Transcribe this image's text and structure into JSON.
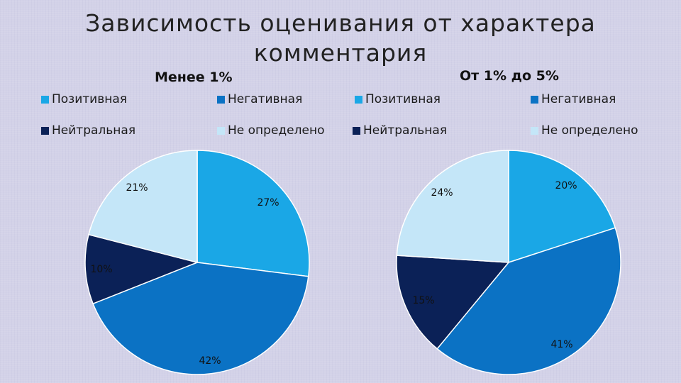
{
  "title": "Зависимость оценивания от характера комментария",
  "colors": {
    "positive": "#1aa7e6",
    "negative": "#0b72c4",
    "neutral": "#0b2157",
    "undetermined": "#c4e6f8"
  },
  "chart_data": [
    {
      "type": "pie",
      "title": "Менее 1%",
      "legend_position": "top",
      "categories": [
        "Позитивная",
        "Негативная",
        "Нейтральная",
        "Не определено"
      ],
      "values": [
        27,
        42,
        10,
        21
      ],
      "labels": [
        "27%",
        "42%",
        "10%",
        "21%"
      ]
    },
    {
      "type": "pie",
      "title": "От 1% до 5%",
      "legend_position": "top",
      "categories": [
        "Позитивная",
        "Негативная",
        "Нейтральная",
        "Не определено"
      ],
      "values": [
        20,
        41,
        15,
        24
      ],
      "labels": [
        "20%",
        "41%",
        "15%",
        "24%"
      ]
    }
  ]
}
